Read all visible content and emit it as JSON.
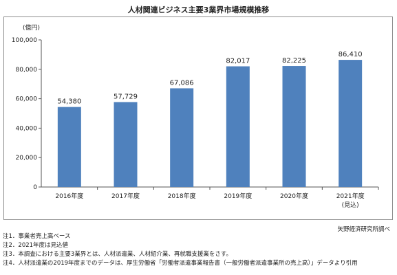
{
  "chart_data": {
    "type": "bar",
    "title": "人材関連ビジネス主要3業界市場規模推移",
    "ylabel": "(億円)",
    "xlabel": "",
    "categories": [
      "2016年度",
      "2017年度",
      "2018年度",
      "2019年度",
      "2020年度",
      "2021年度"
    ],
    "category_sublabels": [
      "",
      "",
      "",
      "",
      "",
      "(見込)"
    ],
    "values": [
      54380,
      57729,
      67086,
      82017,
      82225,
      86410
    ],
    "value_labels": [
      "54,380",
      "57,729",
      "67,086",
      "82,017",
      "82,225",
      "86,410"
    ],
    "ylim": [
      0,
      100000
    ],
    "yticks": [
      0,
      20000,
      40000,
      60000,
      80000,
      100000
    ],
    "ytick_labels": [
      "0",
      "20,000",
      "40,000",
      "60,000",
      "80,000",
      "100,000"
    ],
    "grid": false,
    "bar_color": "#4f81bd"
  },
  "source": "矢野経済研究所調べ",
  "notes": [
    "注1．事業者売上高ベース",
    "注2．2021年度は見込値",
    "注3．本調査における主要3業界とは、人材派遣業、人材紹介業、再就職支援業をさす。",
    "注4．人材派遣業の2019年度までのデータは、厚生労働省「労働者派遣事業報告書（一般労働者派遣事業所の売上高）」データより引用"
  ]
}
